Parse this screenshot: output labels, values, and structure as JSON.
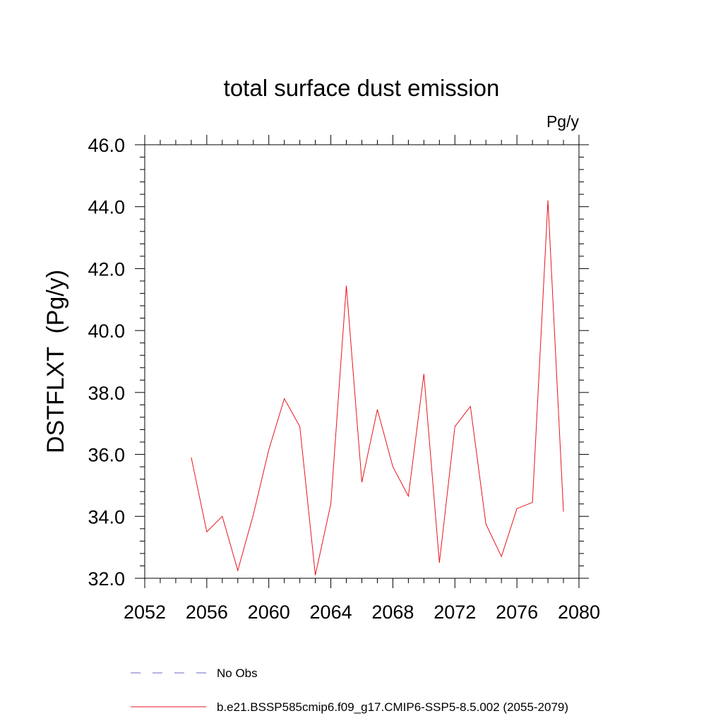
{
  "chart_data": {
    "type": "line",
    "title": "total surface dust emission",
    "units_label": "Pg/y",
    "xlabel": "",
    "ylabel": "DSTFLXT  (Pg/y)",
    "xlim": [
      2052,
      2080
    ],
    "ylim": [
      32.0,
      46.0
    ],
    "x_ticks": [
      2052,
      2056,
      2060,
      2064,
      2068,
      2072,
      2076,
      2080
    ],
    "x_tick_labels": [
      "2052",
      "2056",
      "2060",
      "2064",
      "2068",
      "2072",
      "2076",
      "2080"
    ],
    "y_ticks": [
      32.0,
      34.0,
      36.0,
      38.0,
      40.0,
      42.0,
      44.0,
      46.0
    ],
    "y_tick_labels": [
      "32.0",
      "34.0",
      "36.0",
      "38.0",
      "40.0",
      "42.0",
      "44.0",
      "46.0"
    ],
    "series": [
      {
        "name": "b.e21.BSSP585cmip6.f09_g17.CMIP6-SSP5-8.5.002 (2055-2079)",
        "color": "#e8141c",
        "x": [
          2055,
          2056,
          2057,
          2058,
          2059,
          2060,
          2061,
          2062,
          2063,
          2064,
          2065,
          2066,
          2067,
          2068,
          2069,
          2070,
          2071,
          2072,
          2073,
          2074,
          2075,
          2076,
          2077,
          2078,
          2079
        ],
        "values": [
          35.9,
          33.5,
          34.0,
          32.25,
          34.05,
          36.15,
          37.8,
          36.9,
          32.1,
          34.4,
          41.45,
          35.1,
          37.45,
          35.6,
          34.65,
          38.6,
          32.5,
          36.9,
          37.55,
          33.75,
          32.7,
          34.25,
          34.45,
          44.2,
          34.15
        ]
      }
    ],
    "legend": [
      {
        "label": "No Obs",
        "style": "dashed",
        "color": "#6a6ac8"
      },
      {
        "label": "b.e21.BSSP585cmip6.f09_g17.CMIP6-SSP5-8.5.002 (2055-2079)",
        "style": "solid",
        "color": "#e8141c"
      }
    ]
  }
}
